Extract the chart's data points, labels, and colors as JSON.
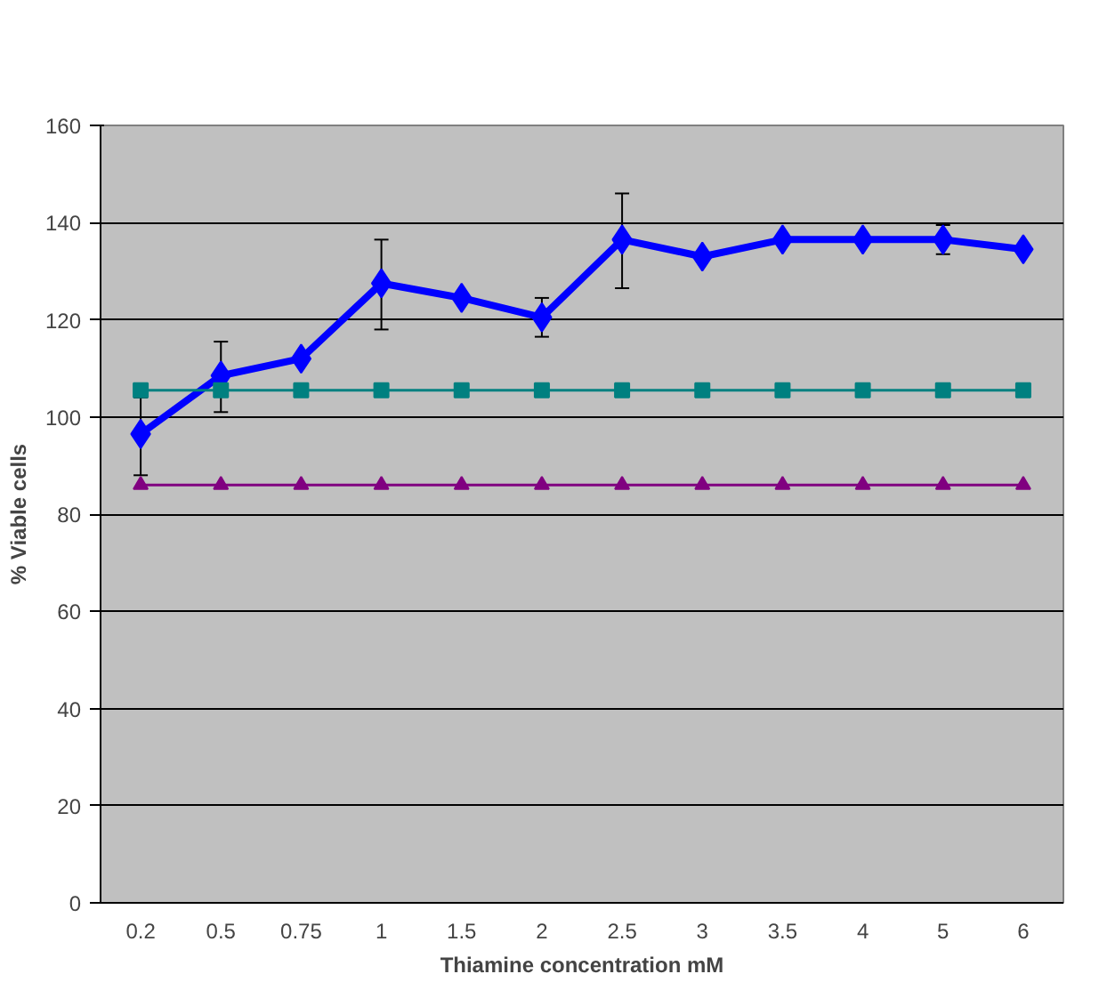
{
  "chart_data": {
    "type": "line",
    "xlabel": "Thiamine concentration mM",
    "ylabel": "% Viable cells",
    "categories": [
      "0.2",
      "0.5",
      "0.75",
      "1",
      "1.5",
      "2",
      "2.5",
      "3",
      "3.5",
      "4",
      "5",
      "6"
    ],
    "series": [
      {
        "color": "#0000ff",
        "marker": "diamond",
        "values": [
          96.5,
          108.5,
          112,
          127.5,
          124.5,
          120.5,
          136.5,
          133,
          136.5,
          136.5,
          136.5,
          134.5
        ],
        "errors": [
          [
            88,
            104
          ],
          [
            101,
            115.5
          ],
          null,
          [
            118,
            136.5
          ],
          null,
          [
            116.5,
            124.5
          ],
          [
            126.5,
            146
          ],
          null,
          null,
          null,
          [
            133.5,
            139.5
          ],
          null
        ]
      },
      {
        "color": "#008080",
        "marker": "square",
        "values": [
          105.5,
          105.5,
          105.5,
          105.5,
          105.5,
          105.5,
          105.5,
          105.5,
          105.5,
          105.5,
          105.5,
          105.5
        ]
      },
      {
        "color": "#800080",
        "marker": "triangle",
        "values": [
          86,
          86,
          86,
          86,
          86,
          86,
          86,
          86,
          86,
          86,
          86,
          86
        ]
      }
    ],
    "ylim": [
      0,
      160
    ],
    "yticks": [
      0,
      20,
      40,
      60,
      80,
      100,
      120,
      140,
      160
    ],
    "grid": "y"
  }
}
